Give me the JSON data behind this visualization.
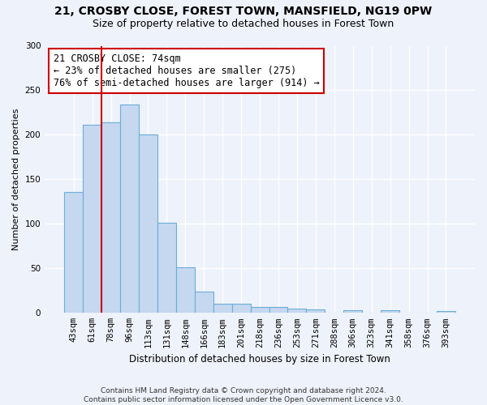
{
  "title_line1": "21, CROSBY CLOSE, FOREST TOWN, MANSFIELD, NG19 0PW",
  "title_line2": "Size of property relative to detached houses in Forest Town",
  "xlabel": "Distribution of detached houses by size in Forest Town",
  "ylabel": "Number of detached properties",
  "footnote": "Contains HM Land Registry data © Crown copyright and database right 2024.\nContains public sector information licensed under the Open Government Licence v3.0.",
  "bar_labels": [
    "43sqm",
    "61sqm",
    "78sqm",
    "96sqm",
    "113sqm",
    "131sqm",
    "148sqm",
    "166sqm",
    "183sqm",
    "201sqm",
    "218sqm",
    "236sqm",
    "253sqm",
    "271sqm",
    "288sqm",
    "306sqm",
    "323sqm",
    "341sqm",
    "358sqm",
    "376sqm",
    "393sqm"
  ],
  "bar_values": [
    136,
    211,
    214,
    234,
    200,
    101,
    51,
    24,
    10,
    10,
    7,
    7,
    5,
    4,
    0,
    3,
    0,
    3,
    0,
    0,
    2
  ],
  "bar_color": "#c5d8f0",
  "bar_edge_color": "#6baed6",
  "reference_line_x": 1.5,
  "annotation_text": "21 CROSBY CLOSE: 74sqm\n← 23% of detached houses are smaller (275)\n76% of semi-detached houses are larger (914) →",
  "ylim": [
    0,
    300
  ],
  "yticks": [
    0,
    50,
    100,
    150,
    200,
    250,
    300
  ],
  "background_color": "#eef2fa",
  "grid_color": "#ffffff",
  "ref_line_color": "#cc0000",
  "title1_fontsize": 10,
  "title2_fontsize": 9,
  "xlabel_fontsize": 8.5,
  "ylabel_fontsize": 8,
  "tick_fontsize": 7.5,
  "annotation_fontsize": 8.5
}
